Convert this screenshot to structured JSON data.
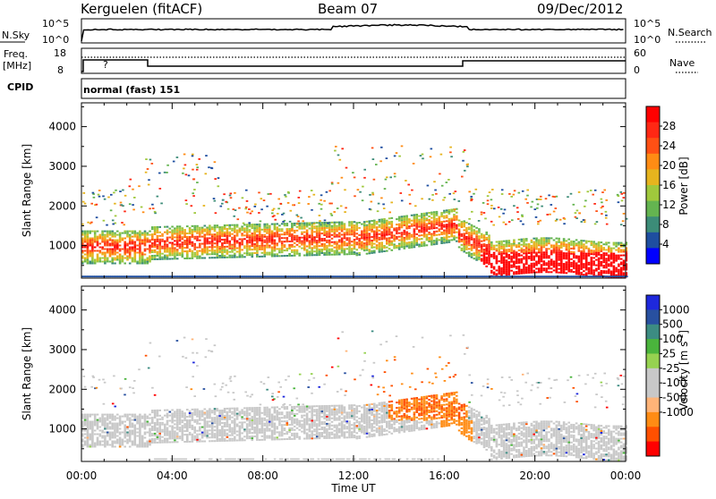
{
  "header": {
    "station": "Kerguelen (fitACF)",
    "beam": "Beam 07",
    "date": "09/Dec/2012"
  },
  "strip_noise": {
    "left_label": "N.Sky",
    "right_label": "N.Search",
    "left_ticks": [
      "10^5",
      "10^0"
    ],
    "right_ticks": [
      "10^5",
      "10^0"
    ]
  },
  "strip_freq": {
    "left_label_1": "Freq.",
    "left_label_2": "[MHz]",
    "right_label": "Nave",
    "left_ticks": [
      "18",
      "8"
    ],
    "right_ticks": [
      "60",
      "0"
    ],
    "marker": "?"
  },
  "cpid": {
    "label": "CPID",
    "value": "normal (fast) 151"
  },
  "chart_data": [
    {
      "type": "heatmap",
      "title": "",
      "ylabel": "Slant Range [km]",
      "ylim": [
        180,
        4600
      ],
      "y_ticks": [
        "4000",
        "3000",
        "2000",
        "1000"
      ],
      "colorbar": {
        "label": "Power [dB]",
        "ticks": [
          "28",
          "24",
          "20",
          "16",
          "12",
          "8",
          "4"
        ],
        "range": [
          0,
          32
        ]
      }
    },
    {
      "type": "heatmap",
      "title": "",
      "ylabel": "Slant Range [km]",
      "ylim": [
        180,
        4600
      ],
      "y_ticks": [
        "4000",
        "3000",
        "2000",
        "1000"
      ],
      "colorbar": {
        "label": "Velocity [m s",
        "label_sup": "-1",
        "label_close": "]",
        "ticks": [
          "1000",
          "500",
          "100",
          "25",
          "-25",
          "-100",
          "-500",
          "-1000"
        ]
      }
    }
  ],
  "xaxis": {
    "label": "Time UT",
    "ticks": [
      "00:00",
      "04:00",
      "08:00",
      "12:00",
      "16:00",
      "20:00",
      "00:00"
    ]
  },
  "colors": {
    "power_scale": [
      "#0000ff",
      "#1e4ea0",
      "#3c8c78",
      "#64b450",
      "#a0c83c",
      "#e6b41e",
      "#ff8c14",
      "#ff5014",
      "#ff2814",
      "#ff0000"
    ],
    "velocity_scale": [
      "#ff0000",
      "#ff5000",
      "#ff8c14",
      "#ffb478",
      "#c8c8c8",
      "#c8c8c8",
      "#96d250",
      "#4ab43c",
      "#3c8c82",
      "#2850a0",
      "#1e28dc"
    ],
    "ground_scatter": "#c8c8c8"
  }
}
